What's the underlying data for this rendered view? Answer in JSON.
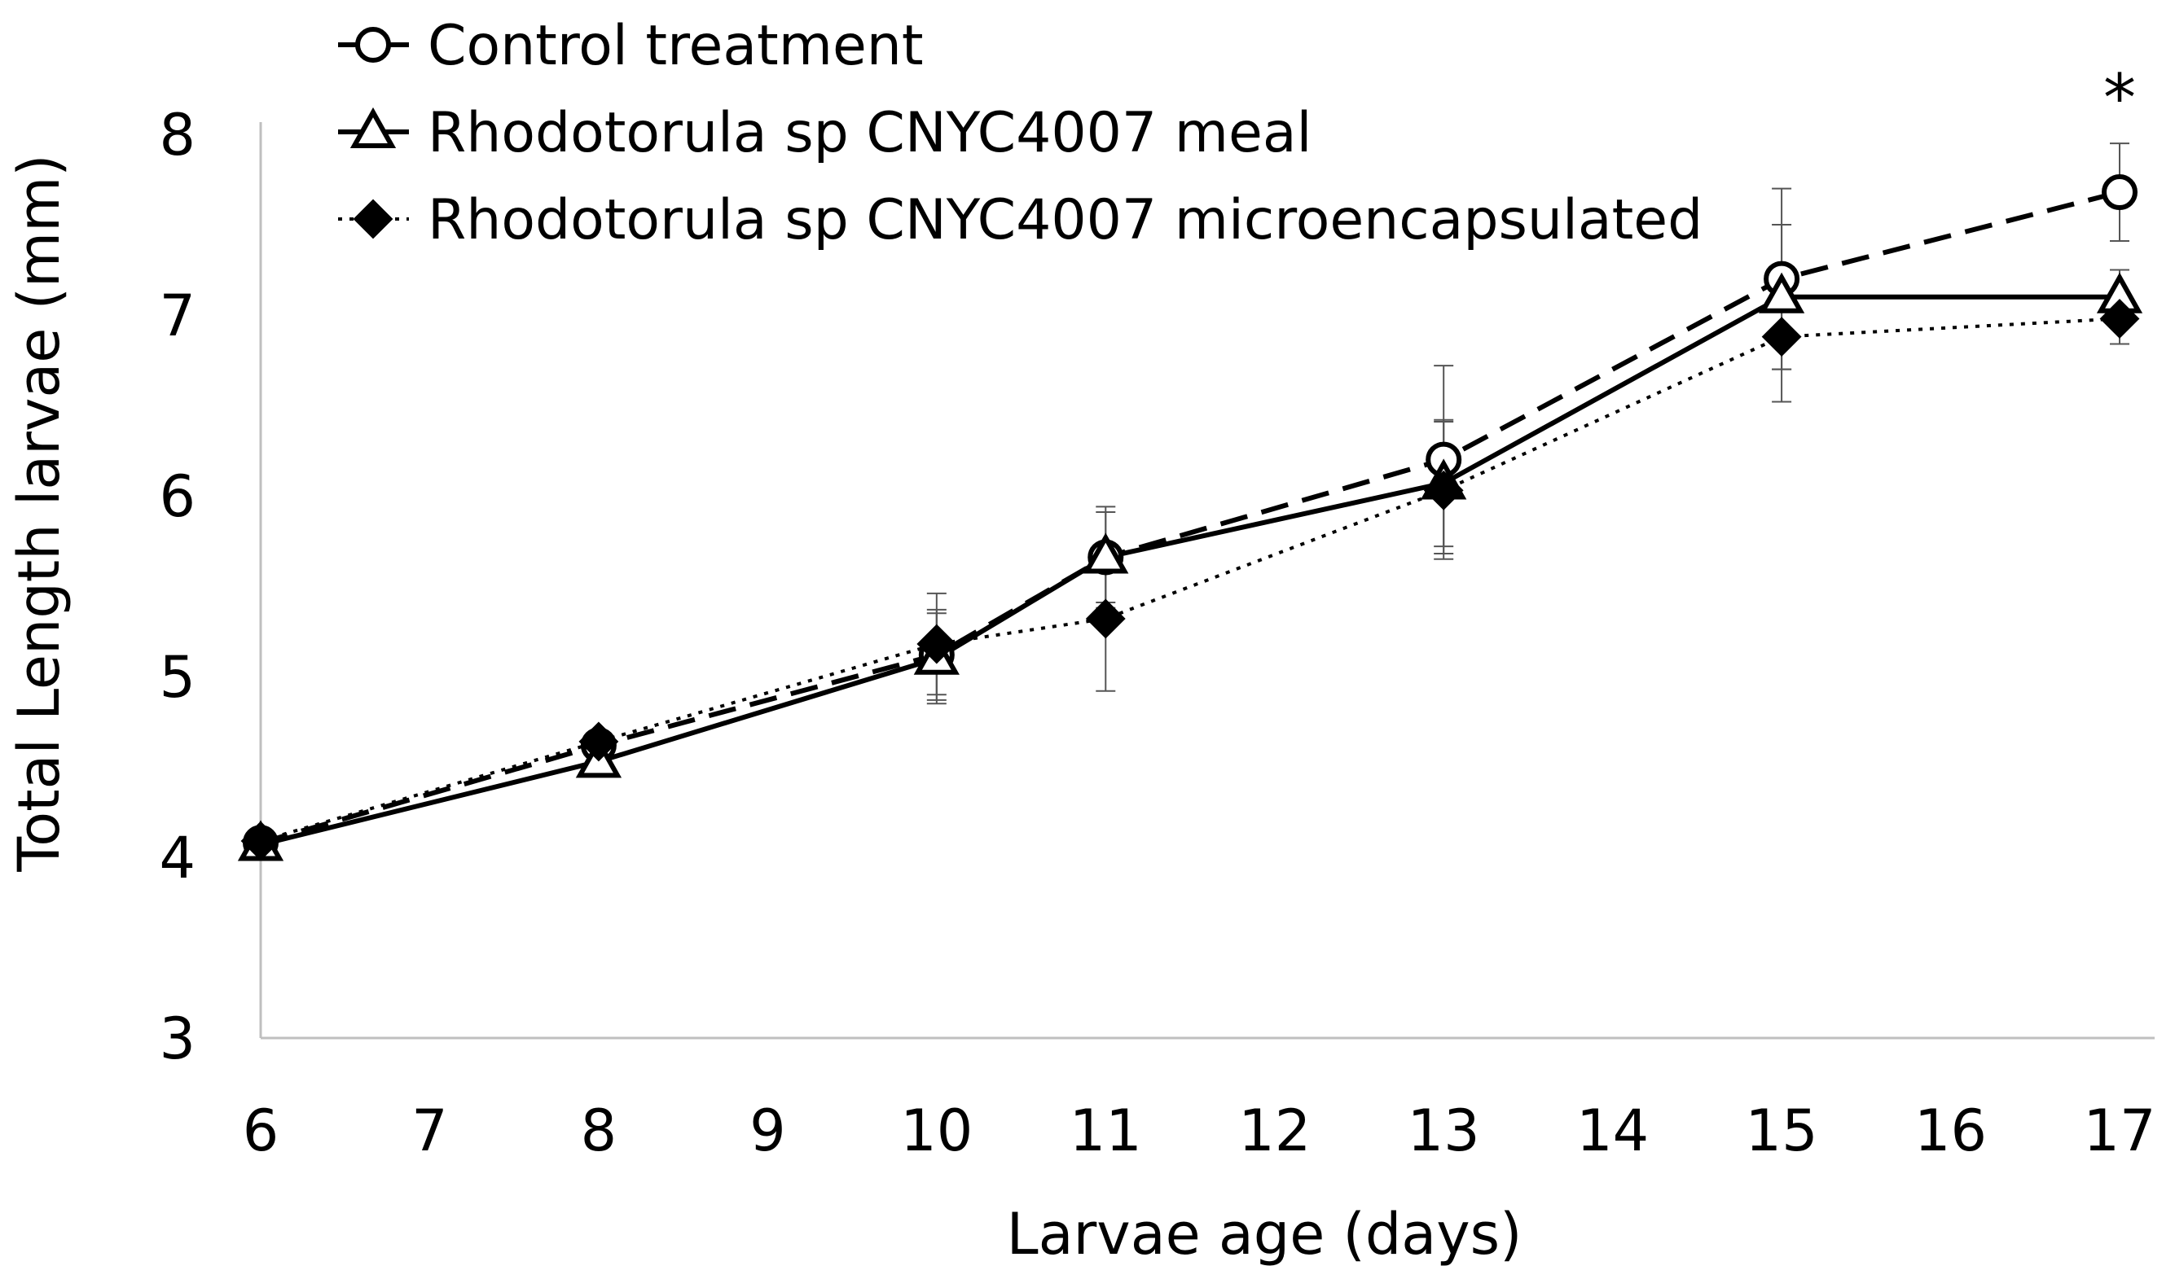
{
  "chart_data": {
    "type": "line",
    "title": "",
    "xlabel": "Larvae age  (days)",
    "ylabel": "Total Length larvae  (mm)",
    "xlim": [
      6,
      17
    ],
    "ylim": [
      3,
      8
    ],
    "x_ticks": [
      "6",
      "7",
      "8",
      "9",
      "10",
      "11",
      "12",
      "13",
      "14",
      "15",
      "16",
      "17"
    ],
    "y_ticks": [
      "3",
      "4",
      "5",
      "6",
      "7",
      "8"
    ],
    "grid": false,
    "legend_position": "top-left",
    "series": [
      {
        "name": "Control treatment",
        "marker": "open-circle",
        "line_style": "dashed",
        "x": [
          6,
          8,
          10,
          11,
          13,
          15,
          17
        ],
        "values": [
          4.08,
          4.62,
          5.12,
          5.66,
          6.2,
          7.2,
          7.68
        ],
        "errors": [
          0.03,
          0.05,
          0.25,
          0.28,
          0.52,
          0.5,
          0.27
        ]
      },
      {
        "name": "Rhodotorula sp CNYC4007 meal",
        "marker": "open-triangle",
        "line_style": "solid",
        "x": [
          6,
          8,
          10,
          11,
          13,
          15,
          17
        ],
        "values": [
          4.07,
          4.53,
          5.1,
          5.66,
          6.07,
          7.1,
          7.1
        ],
        "errors": [
          0.03,
          0.05,
          0.25,
          0.25,
          0.35,
          0.4,
          0.15
        ]
      },
      {
        "name": "Rhodotorula sp CNYC4007 microencapsulated",
        "marker": "filled-diamond",
        "line_style": "dotted",
        "x": [
          6,
          8,
          10,
          11,
          13,
          15,
          17
        ],
        "values": [
          4.09,
          4.64,
          5.18,
          5.32,
          6.03,
          6.88,
          6.98
        ],
        "errors": [
          0.03,
          0.05,
          0.28,
          0.4,
          0.38,
          0.36,
          0.14
        ]
      }
    ],
    "annotations": [
      {
        "text": "*",
        "x": 17,
        "series": "Control treatment"
      }
    ]
  }
}
